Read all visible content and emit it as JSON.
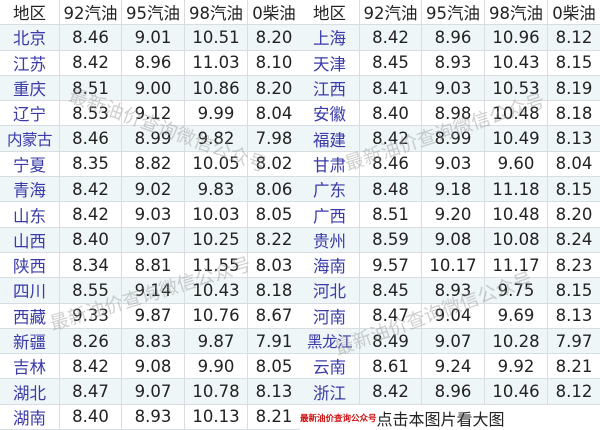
{
  "headers": [
    "地区",
    "92汽油",
    "95汽油",
    "98汽油",
    "0柴油"
  ],
  "left_rows": [
    [
      "北京",
      "8.46",
      "9.01",
      "10.51",
      "8.20"
    ],
    [
      "江苏",
      "8.42",
      "8.96",
      "11.03",
      "8.10"
    ],
    [
      "重庆",
      "8.51",
      "9.00",
      "10.86",
      "8.20"
    ],
    [
      "辽宁",
      "8.53",
      "9.12",
      "9.99",
      "8.04"
    ],
    [
      "内蒙古",
      "8.46",
      "8.99",
      "9.82",
      "7.98"
    ],
    [
      "宁夏",
      "8.35",
      "8.82",
      "10.05",
      "8.02"
    ],
    [
      "青海",
      "8.42",
      "9.02",
      "9.83",
      "8.06"
    ],
    [
      "山东",
      "8.42",
      "9.03",
      "10.03",
      "8.05"
    ],
    [
      "山西",
      "8.40",
      "9.07",
      "10.25",
      "8.22"
    ],
    [
      "陕西",
      "8.34",
      "8.81",
      "11.55",
      "8.03"
    ],
    [
      "四川",
      "8.55",
      "9.14",
      "10.43",
      "8.18"
    ],
    [
      "西藏",
      "9.33",
      "9.87",
      "10.76",
      "8.67"
    ],
    [
      "新疆",
      "8.26",
      "8.83",
      "9.87",
      "7.91"
    ],
    [
      "吉林",
      "8.42",
      "9.08",
      "9.90",
      "8.05"
    ],
    [
      "湖北",
      "8.47",
      "9.07",
      "10.78",
      "8.13"
    ],
    [
      "湖南",
      "8.40",
      "8.93",
      "10.13",
      "8.21"
    ]
  ],
  "right_rows": [
    [
      "上海",
      "8.42",
      "8.96",
      "10.96",
      "8.12"
    ],
    [
      "天津",
      "8.45",
      "8.93",
      "10.43",
      "8.15"
    ],
    [
      "江西",
      "8.41",
      "9.03",
      "10.53",
      "8.19"
    ],
    [
      "安徽",
      "8.40",
      "8.98",
      "10.48",
      "8.18"
    ],
    [
      "福建",
      "8.42",
      "8.99",
      "10.49",
      "8.13"
    ],
    [
      "甘肃",
      "8.46",
      "9.03",
      "9.60",
      "8.04"
    ],
    [
      "广东",
      "8.48",
      "9.18",
      "11.18",
      "8.15"
    ],
    [
      "广西",
      "8.51",
      "9.20",
      "10.48",
      "8.20"
    ],
    [
      "贵州",
      "8.59",
      "9.08",
      "10.08",
      "8.24"
    ],
    [
      "海南",
      "9.57",
      "10.17",
      "11.17",
      "8.23"
    ],
    [
      "河北",
      "8.45",
      "8.93",
      "9.75",
      "8.15"
    ],
    [
      "河南",
      "8.47",
      "9.04",
      "9.69",
      "8.13"
    ],
    [
      "黑龙江",
      "8.49",
      "9.07",
      "10.28",
      "7.97"
    ],
    [
      "云南",
      "8.61",
      "9.24",
      "9.92",
      "8.21"
    ],
    [
      "浙江",
      "8.42",
      "8.96",
      "10.46",
      "8.12"
    ]
  ],
  "footer": {
    "source": "最新油价查询公众号",
    "hint": "点击本图片看大图"
  },
  "watermark": "最新油价查询微信公众号",
  "colors": {
    "region": "#3a3aa8",
    "alt_row": "#eef6f8",
    "footer_red": "#d01010"
  }
}
